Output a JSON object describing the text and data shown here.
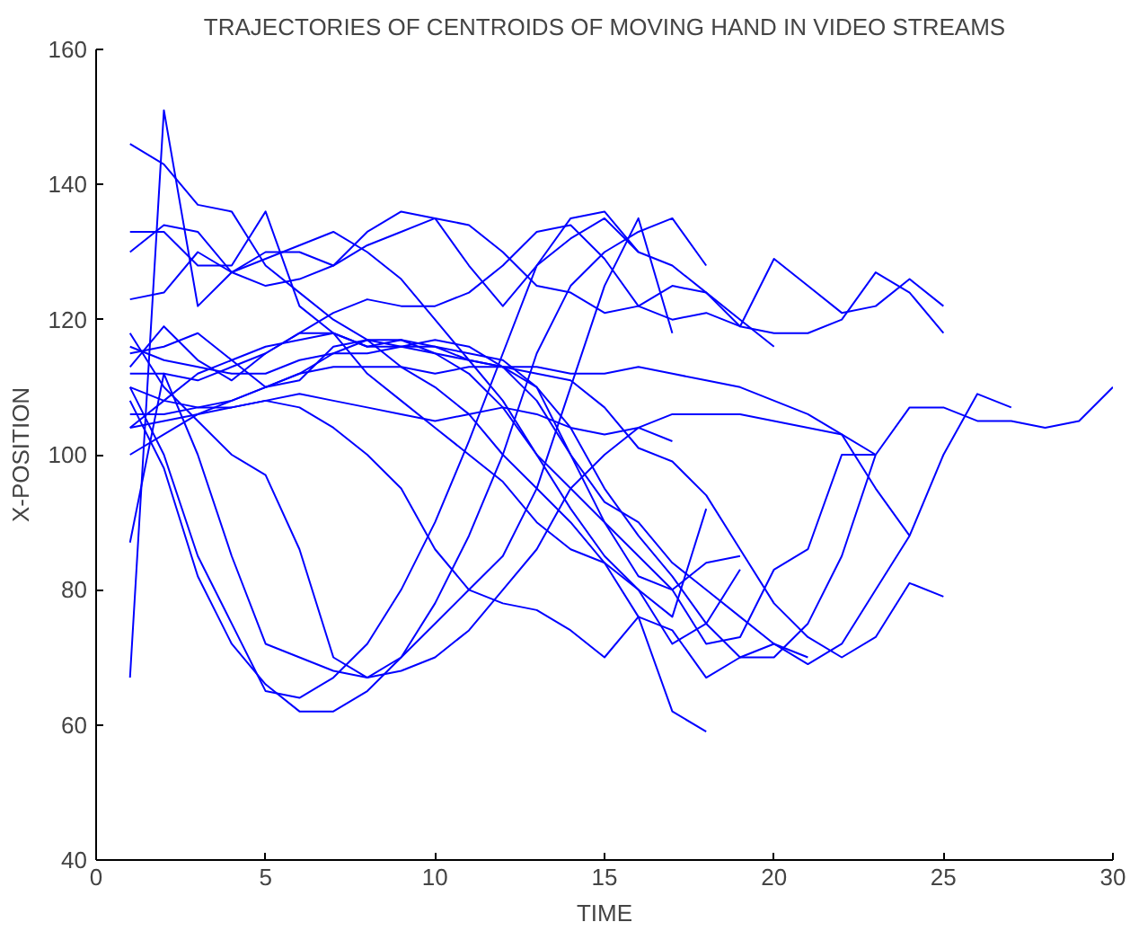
{
  "chart_data": {
    "type": "line",
    "title": "TRAJECTORIES OF CENTROIDS OF MOVING HAND IN VIDEO STREAMS",
    "xlabel": "TIME",
    "ylabel": "X-POSITION",
    "x": [
      1,
      2,
      3,
      4,
      5,
      6,
      7,
      8,
      9,
      10,
      11,
      12,
      13,
      14,
      15,
      16,
      17,
      18,
      19,
      20,
      21,
      22,
      23,
      24,
      25,
      26,
      27,
      28,
      29,
      30
    ],
    "xlim": [
      0,
      30
    ],
    "ylim": [
      40,
      160
    ],
    "xticks": [
      0,
      5,
      10,
      15,
      20,
      25,
      30
    ],
    "yticks": [
      40,
      60,
      80,
      100,
      120,
      140,
      160
    ],
    "grid": false,
    "marker": "none",
    "line_style": "solid",
    "series": [
      {
        "color": "#0000ff",
        "values": [
          67,
          151,
          122,
          127,
          129,
          131,
          133,
          130,
          126,
          120,
          114,
          108,
          100,
          92,
          85,
          80,
          72,
          75,
          83,
          null,
          null,
          null,
          null,
          null,
          null,
          null,
          null,
          null,
          null,
          null
        ]
      },
      {
        "color": "#0000ff",
        "values": [
          146,
          143,
          137,
          136,
          128,
          124,
          120,
          117,
          113,
          110,
          106,
          100,
          95,
          90,
          84,
          76,
          62,
          59,
          null,
          null,
          null,
          null,
          null,
          null,
          null,
          null,
          null,
          null,
          null,
          null
        ]
      },
      {
        "color": "#0000ff",
        "values": [
          133,
          133,
          128,
          128,
          136,
          122,
          118,
          112,
          108,
          104,
          100,
          96,
          90,
          86,
          84,
          80,
          76,
          92,
          null,
          null,
          null,
          null,
          null,
          null,
          null,
          null,
          null,
          null,
          null,
          null
        ]
      },
      {
        "color": "#0000ff",
        "values": [
          130,
          134,
          133,
          127,
          130,
          130,
          128,
          131,
          133,
          135,
          134,
          130,
          125,
          124,
          121,
          122,
          125,
          124,
          120,
          116,
          null,
          null,
          null,
          null,
          null,
          null,
          null,
          null,
          null,
          null
        ]
      },
      {
        "color": "#0000ff",
        "values": [
          123,
          124,
          130,
          127,
          125,
          126,
          128,
          133,
          136,
          135,
          128,
          122,
          128,
          135,
          136,
          130,
          128,
          124,
          119,
          129,
          125,
          121,
          122,
          126,
          122,
          null,
          null,
          null,
          null,
          null
        ]
      },
      {
        "color": "#0000ff",
        "values": [
          113,
          119,
          114,
          111,
          115,
          118,
          121,
          123,
          122,
          122,
          124,
          128,
          133,
          134,
          129,
          122,
          120,
          121,
          119,
          118,
          118,
          120,
          127,
          124,
          118,
          null,
          null,
          null,
          null,
          null
        ]
      },
      {
        "color": "#0000ff",
        "values": [
          110,
          100,
          85,
          75,
          65,
          64,
          67,
          72,
          80,
          90,
          102,
          115,
          128,
          132,
          135,
          130,
          null,
          null,
          null,
          null,
          null,
          null,
          null,
          null,
          null,
          null,
          null,
          null,
          null,
          null
        ]
      },
      {
        "color": "#0000ff",
        "values": [
          108,
          98,
          82,
          72,
          66,
          62,
          62,
          65,
          70,
          78,
          88,
          100,
          115,
          125,
          130,
          133,
          135,
          128,
          null,
          null,
          null,
          null,
          null,
          null,
          null,
          null,
          null,
          null,
          null,
          null
        ]
      },
      {
        "color": "#0000ff",
        "values": [
          118,
          110,
          105,
          100,
          97,
          86,
          70,
          67,
          70,
          75,
          80,
          85,
          95,
          110,
          125,
          135,
          118,
          null,
          null,
          null,
          null,
          null,
          null,
          null,
          null,
          null,
          null,
          null,
          null,
          null
        ]
      },
      {
        "color": "#0000ff",
        "values": [
          104,
          108,
          112,
          114,
          116,
          117,
          118,
          116,
          116,
          115,
          114,
          113,
          110,
          104,
          95,
          88,
          82,
          75,
          70,
          70,
          75,
          85,
          100,
          107,
          107,
          105,
          105,
          104,
          105,
          110
        ]
      },
      {
        "color": "#0000ff",
        "values": [
          106,
          106,
          107,
          108,
          110,
          112,
          115,
          117,
          116,
          117,
          116,
          113,
          108,
          100,
          93,
          90,
          84,
          80,
          76,
          72,
          69,
          72,
          80,
          88,
          100,
          109,
          107,
          null,
          null,
          null
        ]
      },
      {
        "color": "#0000ff",
        "values": [
          112,
          112,
          111,
          113,
          115,
          118,
          118,
          116,
          117,
          115,
          112,
          107,
          100,
          95,
          90,
          85,
          80,
          72,
          73,
          83,
          86,
          100,
          100,
          null,
          null,
          null,
          null,
          null,
          null,
          null
        ]
      },
      {
        "color": "#0000ff",
        "values": [
          104,
          105,
          106,
          108,
          110,
          112,
          113,
          113,
          113,
          112,
          113,
          113,
          112,
          111,
          107,
          101,
          99,
          94,
          86,
          78,
          73,
          70,
          73,
          81,
          79,
          null,
          null,
          null,
          null,
          null
        ]
      },
      {
        "color": "#0000ff",
        "values": [
          116,
          114,
          113,
          112,
          112,
          114,
          115,
          115,
          116,
          116,
          114,
          113,
          113,
          112,
          112,
          113,
          112,
          111,
          110,
          108,
          106,
          103,
          95,
          88,
          null,
          null,
          null,
          null,
          null,
          null
        ]
      },
      {
        "color": "#0000ff",
        "values": [
          110,
          108,
          107,
          107,
          108,
          109,
          108,
          107,
          106,
          105,
          106,
          107,
          106,
          104,
          103,
          104,
          106,
          106,
          106,
          105,
          104,
          103,
          100,
          null,
          null,
          null,
          null,
          null,
          null,
          null
        ]
      },
      {
        "color": "#0000ff",
        "values": [
          100,
          103,
          106,
          107,
          108,
          107,
          104,
          100,
          95,
          86,
          80,
          78,
          77,
          74,
          70,
          76,
          74,
          67,
          70,
          72,
          70,
          null,
          null,
          null,
          null,
          null,
          null,
          null,
          null,
          null
        ]
      },
      {
        "color": "#0000ff",
        "values": [
          87,
          112,
          100,
          85,
          72,
          70,
          68,
          67,
          68,
          70,
          74,
          80,
          86,
          95,
          100,
          104,
          102,
          null,
          null,
          null,
          null,
          null,
          null,
          null,
          null,
          null,
          null,
          null,
          null,
          null
        ]
      },
      {
        "color": "#0000ff",
        "values": [
          115,
          116,
          118,
          114,
          110,
          111,
          116,
          117,
          117,
          116,
          115,
          114,
          110,
          100,
          90,
          82,
          80,
          84,
          85,
          null,
          null,
          null,
          null,
          null,
          null,
          null,
          null,
          null,
          null,
          null
        ]
      }
    ]
  }
}
